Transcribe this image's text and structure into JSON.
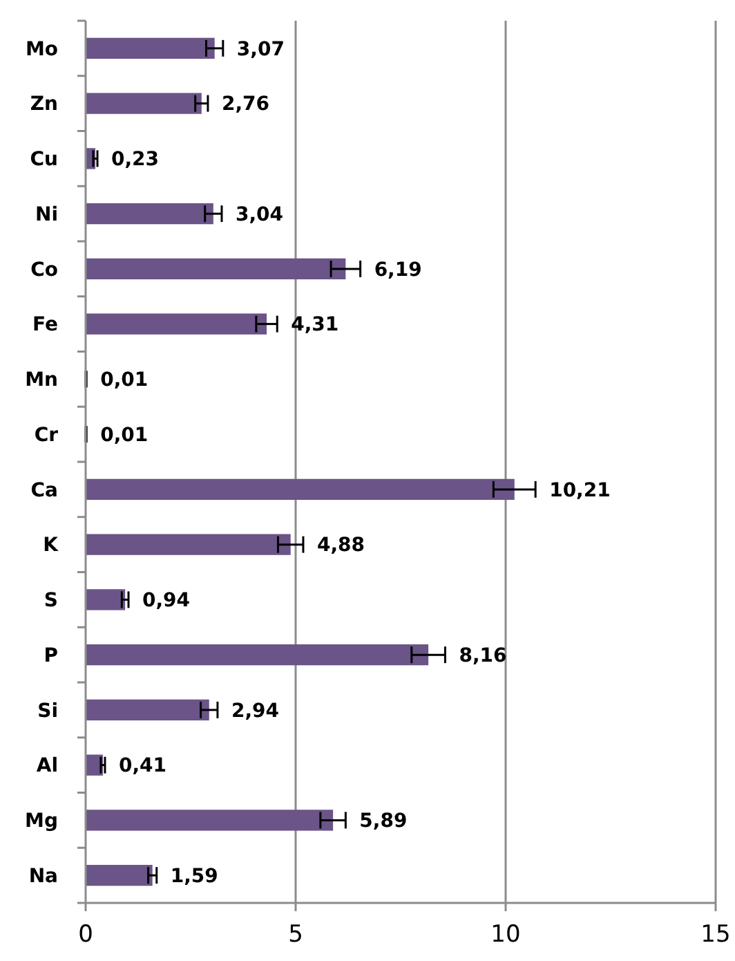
{
  "chart_data": {
    "type": "bar",
    "orientation": "horizontal",
    "categories": [
      "Mo",
      "Zn",
      "Cu",
      "Ni",
      "Co",
      "Fe",
      "Mn",
      "Cr",
      "Ca",
      "K",
      "S",
      "P",
      "Si",
      "Al",
      "Mg",
      "Na"
    ],
    "values": [
      3.07,
      2.76,
      0.23,
      3.04,
      6.19,
      4.31,
      0.01,
      0.01,
      10.21,
      4.88,
      0.94,
      8.16,
      2.94,
      0.41,
      5.89,
      1.59
    ],
    "errors": [
      0.2,
      0.15,
      0.05,
      0.2,
      0.35,
      0.25,
      0.01,
      0.01,
      0.5,
      0.3,
      0.08,
      0.4,
      0.2,
      0.05,
      0.3,
      0.1
    ],
    "value_labels": [
      "3,07",
      "2,76",
      "0,23",
      "3,04",
      "6,19",
      "4,31",
      "0,01",
      "0,01",
      "10,21",
      "4,88",
      "0,94",
      "8,16",
      "2,94",
      "0,41",
      "5,89",
      "1,59"
    ],
    "color": "#6a5488",
    "xlim": [
      0,
      15
    ],
    "xticks": [
      0,
      5,
      10,
      15
    ],
    "grid": "x"
  }
}
